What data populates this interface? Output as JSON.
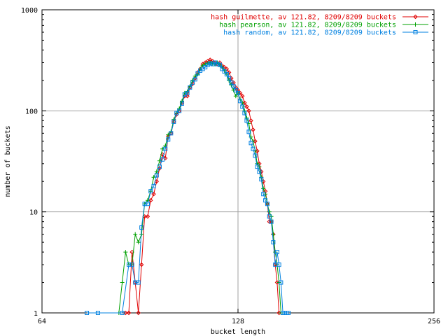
{
  "chart_data": {
    "type": "line",
    "xlabel": "bucket length",
    "ylabel": "number of buckets",
    "x_scale": "log2",
    "y_scale": "log10",
    "xlim": [
      64,
      256
    ],
    "ylim": [
      1,
      1000
    ],
    "x_ticks": [
      "64",
      "128",
      "256"
    ],
    "y_ticks": [
      "1",
      "10",
      "100",
      "1000"
    ],
    "grid": true,
    "legend_position": "top-right",
    "series": [
      {
        "name": "hash guilmette, av 121.82, 8209/8209 buckets",
        "color": "#e00000",
        "marker": "diamond",
        "points": [
          [
            86,
            1
          ],
          [
            87,
            1
          ],
          [
            88,
            4
          ],
          [
            89,
            2
          ],
          [
            90,
            1
          ],
          [
            91,
            3
          ],
          [
            92,
            9
          ],
          [
            93,
            9
          ],
          [
            94,
            13
          ],
          [
            95,
            15
          ],
          [
            96,
            20
          ],
          [
            97,
            27
          ],
          [
            98,
            37
          ],
          [
            99,
            34
          ],
          [
            100,
            56
          ],
          [
            101,
            60
          ],
          [
            102,
            78
          ],
          [
            103,
            92
          ],
          [
            104,
            100
          ],
          [
            105,
            120
          ],
          [
            106,
            140
          ],
          [
            107,
            140
          ],
          [
            108,
            170
          ],
          [
            109,
            185
          ],
          [
            110,
            210
          ],
          [
            111,
            240
          ],
          [
            112,
            260
          ],
          [
            113,
            290
          ],
          [
            114,
            300
          ],
          [
            115,
            310
          ],
          [
            116,
            320
          ],
          [
            117,
            310
          ],
          [
            118,
            300
          ],
          [
            119,
            290
          ],
          [
            120,
            300
          ],
          [
            121,
            280
          ],
          [
            122,
            270
          ],
          [
            123,
            260
          ],
          [
            124,
            240
          ],
          [
            125,
            210
          ],
          [
            126,
            190
          ],
          [
            127,
            170
          ],
          [
            128,
            160
          ],
          [
            129,
            150
          ],
          [
            130,
            140
          ],
          [
            131,
            120
          ],
          [
            132,
            110
          ],
          [
            133,
            100
          ],
          [
            134,
            80
          ],
          [
            135,
            65
          ],
          [
            136,
            50
          ],
          [
            137,
            40
          ],
          [
            138,
            30
          ],
          [
            139,
            25
          ],
          [
            140,
            20
          ],
          [
            141,
            16
          ],
          [
            142,
            12
          ],
          [
            143,
            8
          ],
          [
            144,
            8
          ],
          [
            145,
            6
          ],
          [
            146,
            3
          ],
          [
            147,
            2
          ],
          [
            148,
            1
          ]
        ]
      },
      {
        "name": "hash pearson, av 121.82, 8209/8209 buckets",
        "color": "#00a000",
        "marker": "plus",
        "points": [
          [
            84,
            1
          ],
          [
            85,
            2
          ],
          [
            86,
            4
          ],
          [
            87,
            3
          ],
          [
            88,
            3
          ],
          [
            89,
            6
          ],
          [
            90,
            5
          ],
          [
            91,
            6
          ],
          [
            92,
            12
          ],
          [
            93,
            13
          ],
          [
            94,
            16
          ],
          [
            95,
            22
          ],
          [
            96,
            25
          ],
          [
            97,
            32
          ],
          [
            98,
            42
          ],
          [
            99,
            45
          ],
          [
            100,
            58
          ],
          [
            101,
            62
          ],
          [
            102,
            82
          ],
          [
            103,
            95
          ],
          [
            104,
            105
          ],
          [
            105,
            125
          ],
          [
            106,
            150
          ],
          [
            107,
            155
          ],
          [
            108,
            175
          ],
          [
            109,
            200
          ],
          [
            110,
            220
          ],
          [
            111,
            230
          ],
          [
            112,
            260
          ],
          [
            113,
            280
          ],
          [
            114,
            290
          ],
          [
            115,
            295
          ],
          [
            116,
            300
          ],
          [
            117,
            295
          ],
          [
            118,
            290
          ],
          [
            119,
            300
          ],
          [
            120,
            285
          ],
          [
            121,
            270
          ],
          [
            122,
            250
          ],
          [
            123,
            230
          ],
          [
            124,
            200
          ],
          [
            125,
            180
          ],
          [
            126,
            160
          ],
          [
            127,
            140
          ],
          [
            128,
            150
          ],
          [
            129,
            130
          ],
          [
            130,
            120
          ],
          [
            131,
            100
          ],
          [
            132,
            85
          ],
          [
            133,
            75
          ],
          [
            134,
            55
          ],
          [
            135,
            50
          ],
          [
            136,
            40
          ],
          [
            137,
            30
          ],
          [
            138,
            28
          ],
          [
            139,
            22
          ],
          [
            140,
            17
          ],
          [
            141,
            15
          ],
          [
            142,
            12
          ],
          [
            143,
            10
          ],
          [
            144,
            9
          ],
          [
            145,
            6
          ],
          [
            146,
            4
          ],
          [
            147,
            3
          ],
          [
            148,
            2
          ],
          [
            149,
            1
          ],
          [
            150,
            1
          ]
        ]
      },
      {
        "name": "hash random, av 121.82, 8209/8209 buckets",
        "color": "#0080e0",
        "marker": "square",
        "points": [
          [
            75,
            1
          ],
          [
            78,
            1
          ],
          [
            85,
            1
          ],
          [
            87,
            3
          ],
          [
            88,
            3
          ],
          [
            89,
            2
          ],
          [
            90,
            2
          ],
          [
            91,
            7
          ],
          [
            92,
            12
          ],
          [
            93,
            12
          ],
          [
            94,
            16
          ],
          [
            95,
            18
          ],
          [
            96,
            23
          ],
          [
            97,
            28
          ],
          [
            98,
            33
          ],
          [
            99,
            42
          ],
          [
            100,
            52
          ],
          [
            101,
            60
          ],
          [
            102,
            78
          ],
          [
            103,
            95
          ],
          [
            104,
            100
          ],
          [
            105,
            118
          ],
          [
            106,
            145
          ],
          [
            107,
            150
          ],
          [
            108,
            170
          ],
          [
            109,
            190
          ],
          [
            110,
            205
          ],
          [
            111,
            235
          ],
          [
            112,
            250
          ],
          [
            113,
            260
          ],
          [
            114,
            270
          ],
          [
            115,
            285
          ],
          [
            116,
            295
          ],
          [
            117,
            290
          ],
          [
            118,
            300
          ],
          [
            119,
            290
          ],
          [
            120,
            285
          ],
          [
            121,
            260
          ],
          [
            122,
            245
          ],
          [
            123,
            230
          ],
          [
            124,
            210
          ],
          [
            125,
            190
          ],
          [
            126,
            175
          ],
          [
            127,
            160
          ],
          [
            128,
            150
          ],
          [
            129,
            125
          ],
          [
            130,
            110
          ],
          [
            131,
            95
          ],
          [
            132,
            80
          ],
          [
            133,
            62
          ],
          [
            134,
            48
          ],
          [
            135,
            42
          ],
          [
            136,
            36
          ],
          [
            137,
            28
          ],
          [
            138,
            25
          ],
          [
            139,
            21
          ],
          [
            140,
            15
          ],
          [
            141,
            13
          ],
          [
            142,
            12
          ],
          [
            143,
            9
          ],
          [
            144,
            8
          ],
          [
            145,
            5
          ],
          [
            146,
            3
          ],
          [
            147,
            4
          ],
          [
            148,
            3
          ],
          [
            149,
            2
          ],
          [
            150,
            1
          ],
          [
            151,
            1
          ],
          [
            152,
            1
          ],
          [
            153,
            1
          ]
        ]
      }
    ]
  }
}
